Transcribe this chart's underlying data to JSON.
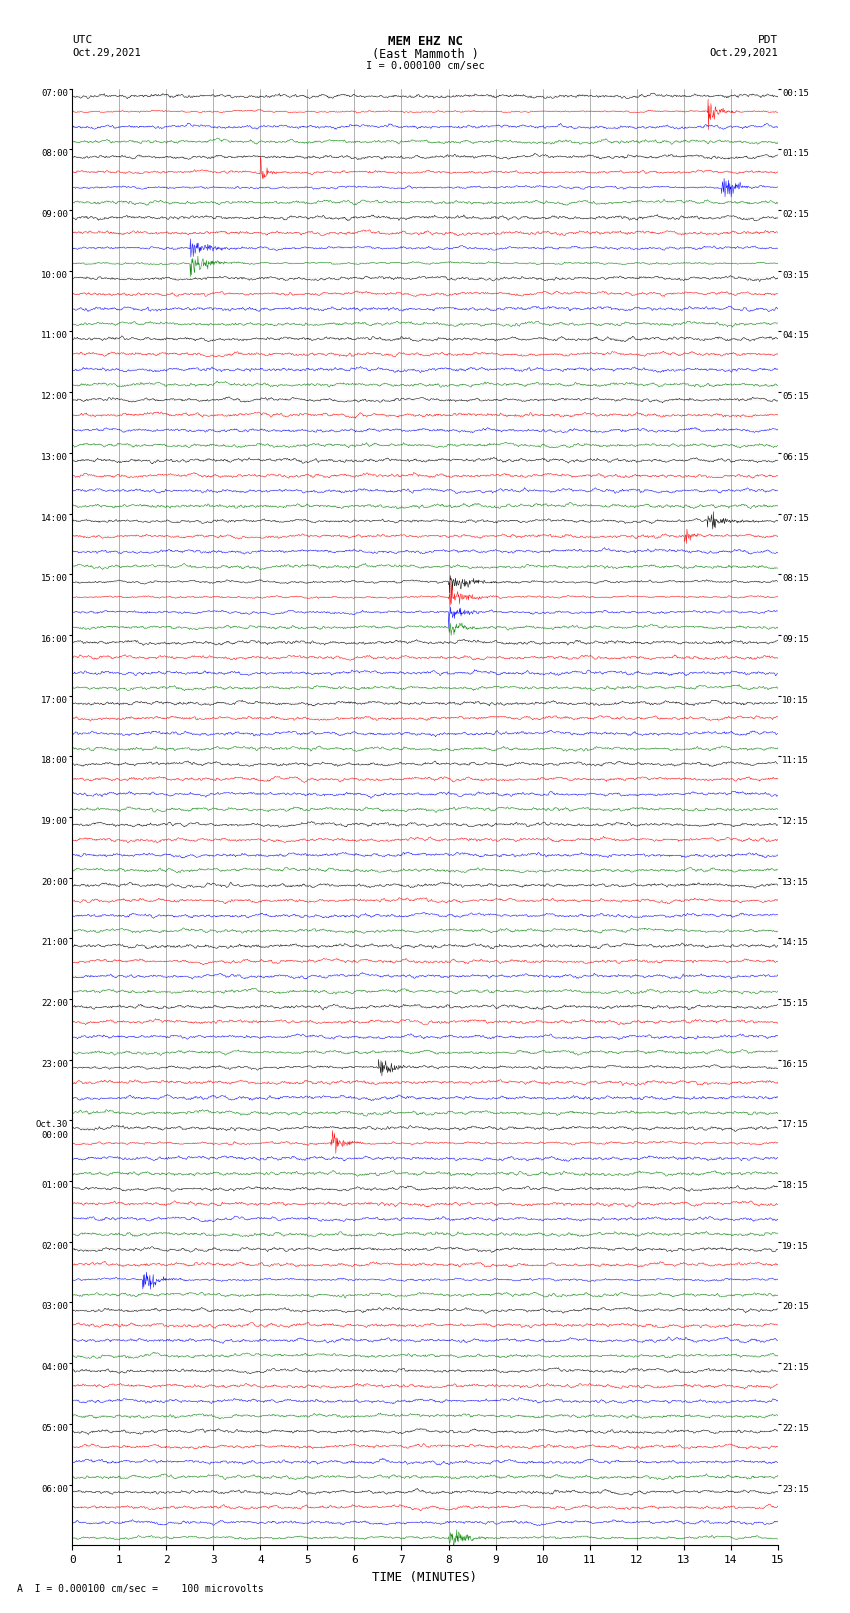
{
  "title_line1": "MEM EHZ NC",
  "title_line2": "(East Mammoth )",
  "scale_text": "I = 0.000100 cm/sec",
  "left_header_line1": "UTC",
  "left_header_line2": "Oct.29,2021",
  "right_header_line1": "PDT",
  "right_header_line2": "Oct.29,2021",
  "footer_note": "A  I = 0.000100 cm/sec =    100 microvolts",
  "xlabel": "TIME (MINUTES)",
  "bg_color": "#ffffff",
  "fig_width": 8.5,
  "fig_height": 16.13,
  "dpi": 100,
  "trace_colors": [
    "black",
    "red",
    "blue",
    "green"
  ],
  "utc_labels": [
    "07:00",
    "08:00",
    "09:00",
    "10:00",
    "11:00",
    "12:00",
    "13:00",
    "14:00",
    "15:00",
    "16:00",
    "17:00",
    "18:00",
    "19:00",
    "20:00",
    "21:00",
    "22:00",
    "23:00",
    "Oct.30\n00:00",
    "01:00",
    "02:00",
    "03:00",
    "04:00",
    "05:00",
    "06:00"
  ],
  "pdt_labels": [
    "00:15",
    "01:15",
    "02:15",
    "03:15",
    "04:15",
    "05:15",
    "06:15",
    "07:15",
    "08:15",
    "09:15",
    "10:15",
    "11:15",
    "12:15",
    "13:15",
    "14:15",
    "15:15",
    "16:15",
    "17:15",
    "18:15",
    "19:15",
    "20:15",
    "21:15",
    "22:15",
    "23:15"
  ],
  "n_rows": 24,
  "n_traces_per_row": 4,
  "minutes": 15,
  "samples_per_minute": 100,
  "grid_color": "#777777",
  "grid_linewidth": 0.4,
  "trace_linewidth": 0.35,
  "amplitude_scale": 0.38,
  "noise_base": 0.5
}
